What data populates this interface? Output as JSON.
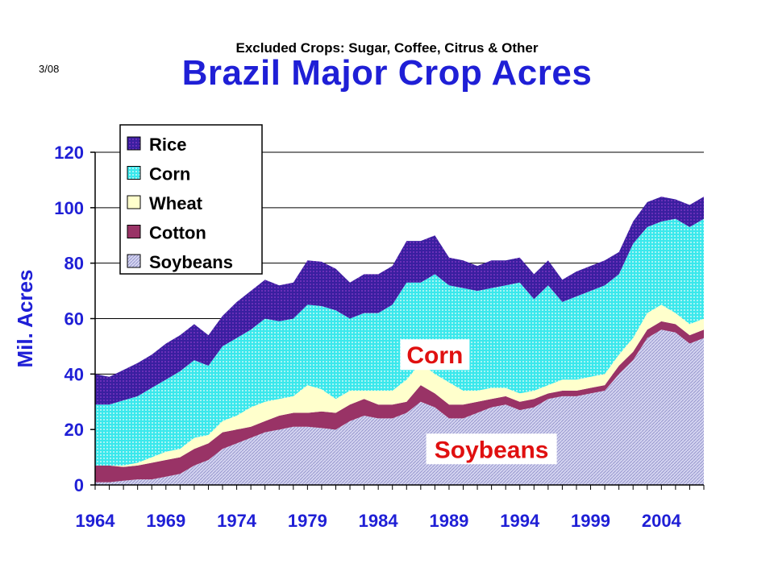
{
  "chart_data": {
    "type": "area",
    "stacked": true,
    "subtitle": "Excluded Crops: Sugar, Coffee, Citrus & Other",
    "title": "Brazil Major Crop Acres",
    "note": "3/08",
    "ylabel": "Mil. Acres",
    "ylim": [
      0,
      120
    ],
    "yticks": [
      0,
      20,
      40,
      60,
      80,
      100,
      120
    ],
    "xlim": [
      1964,
      2007
    ],
    "xticks": [
      "1964",
      "1969",
      "1974",
      "1979",
      "1984",
      "1989",
      "1994",
      "1999",
      "2004"
    ],
    "grid": true,
    "legend_position": "top-left",
    "x": [
      1964,
      1965,
      1966,
      1967,
      1968,
      1969,
      1970,
      1971,
      1972,
      1973,
      1974,
      1975,
      1976,
      1977,
      1978,
      1979,
      1980,
      1981,
      1982,
      1983,
      1984,
      1985,
      1986,
      1987,
      1988,
      1989,
      1990,
      1991,
      1992,
      1993,
      1994,
      1995,
      1996,
      1997,
      1998,
      1999,
      2000,
      2001,
      2002,
      2003,
      2004,
      2005,
      2006,
      2007
    ],
    "series": [
      {
        "name": "Soybeans",
        "color": "#c8c8e8",
        "values": [
          1,
          1,
          1.5,
          2,
          2,
          3,
          4,
          7,
          9,
          13,
          15,
          17,
          19,
          20,
          21,
          21,
          20.5,
          20,
          23,
          25,
          24,
          24,
          26,
          30,
          28,
          24,
          24,
          26,
          28,
          29,
          27,
          28,
          31,
          32,
          32,
          33,
          34,
          40,
          45,
          53,
          56,
          55,
          51,
          53
        ]
      },
      {
        "name": "Cotton",
        "color": "#993366",
        "values": [
          6,
          6,
          5,
          5,
          6,
          6,
          6,
          6,
          6,
          6,
          5,
          4,
          4,
          5,
          5,
          5,
          6,
          6,
          6,
          6,
          5,
          5,
          4,
          6,
          5,
          5,
          5,
          4,
          3,
          3,
          3,
          3,
          2,
          2,
          2,
          2,
          2,
          3,
          3,
          3,
          3,
          3,
          3,
          3
        ]
      },
      {
        "name": "Wheat",
        "color": "#ffffcc",
        "values": [
          0,
          0,
          0.5,
          1,
          2,
          3,
          3,
          4,
          3,
          4,
          5,
          7,
          7,
          6,
          6,
          10,
          8,
          5,
          5,
          3,
          5,
          5,
          8,
          8,
          7,
          8,
          5,
          4,
          4,
          3,
          3,
          3,
          3,
          4,
          4,
          4,
          4,
          4,
          5,
          6,
          6,
          4,
          4,
          4
        ]
      },
      {
        "name": "Corn",
        "color": "#33e6e6",
        "values": [
          22,
          22,
          23.5,
          24,
          25,
          26,
          28,
          28,
          25,
          27,
          28,
          28,
          30,
          28,
          28,
          29,
          30,
          32,
          26,
          28,
          28,
          31,
          35,
          29,
          36,
          35,
          37,
          36,
          36,
          37,
          40,
          33,
          36,
          28,
          30,
          31,
          32,
          29,
          34,
          31,
          30,
          34,
          35,
          36
        ]
      },
      {
        "name": "Rice",
        "color": "#3a1f9f",
        "values": [
          11,
          10,
          11,
          12,
          12,
          13,
          13,
          13,
          11,
          11,
          13,
          14,
          14,
          13,
          13,
          16,
          16,
          15,
          13,
          14,
          14,
          14,
          15,
          15,
          14,
          10,
          10,
          9,
          10,
          9,
          9,
          9,
          9,
          8,
          9,
          9,
          9,
          8,
          8,
          9,
          9,
          7,
          8,
          8
        ]
      }
    ],
    "annotations": [
      {
        "text": "Corn",
        "x": 1988,
        "y": 47
      },
      {
        "text": "Soybeans",
        "x": 1992,
        "y": 13
      }
    ]
  }
}
